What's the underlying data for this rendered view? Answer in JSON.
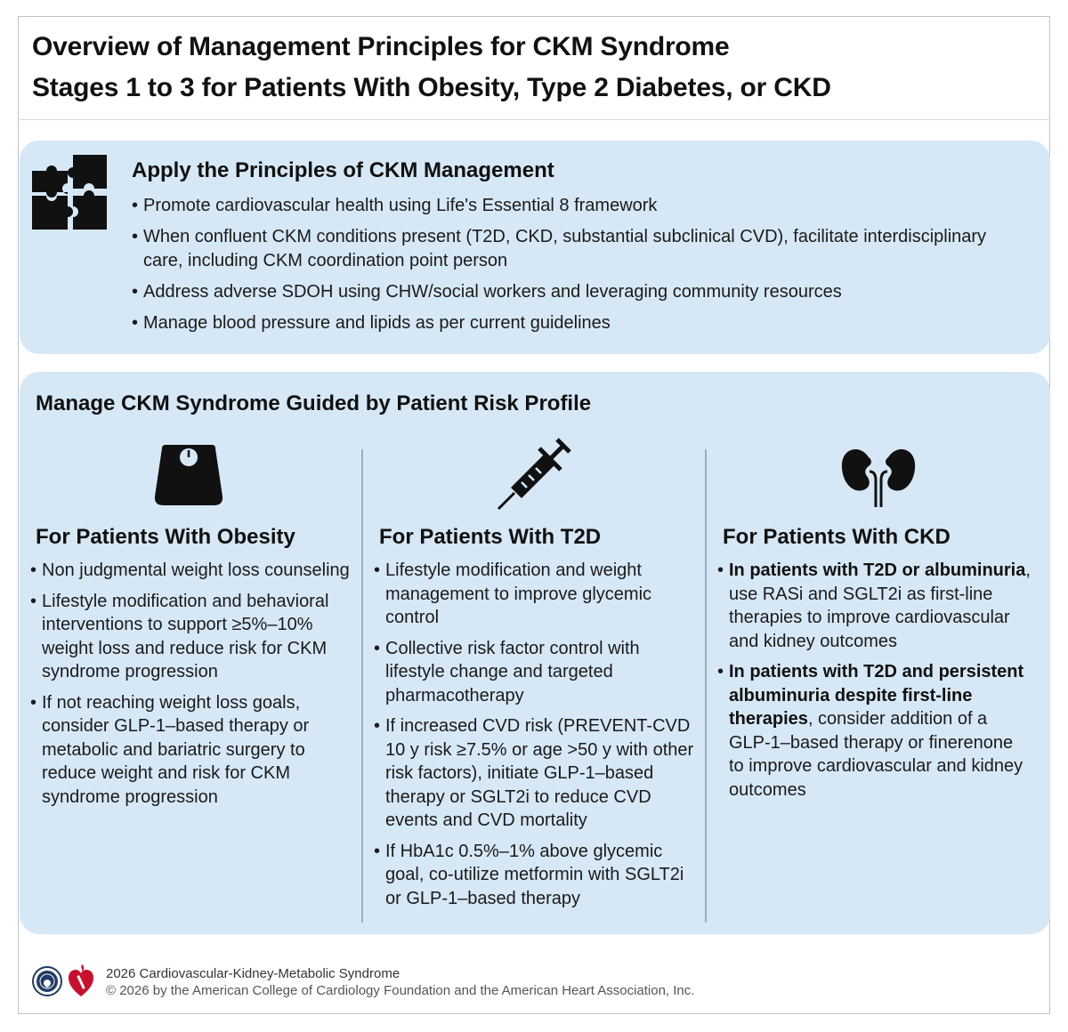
{
  "header": {
    "title_line1": "Overview of Management Principles for CKM Syndrome",
    "title_line2": "Stages 1 to 3 for Patients With Obesity, Type 2 Diabetes, or CKD"
  },
  "principles": {
    "icon": "puzzle-icon",
    "heading": "Apply the Principles of CKM Management",
    "bullets": [
      "Promote cardiovascular health using Life's Essential 8 framework",
      "When confluent CKM conditions present (T2D, CKD, substantial subclinical CVD), facilitate interdisciplinary care, including CKM coordination point person",
      "Address adverse SDOH using CHW/social workers and leveraging community resources",
      "Manage blood pressure and lipids as per current guidelines"
    ]
  },
  "risk_profile": {
    "heading": "Manage CKM Syndrome Guided by Patient Risk Profile",
    "columns": [
      {
        "icon": "weight-scale-icon",
        "heading": "For Patients With Obesity",
        "bullets": [
          {
            "bold": "",
            "text": "Non judgmental weight loss counseling"
          },
          {
            "bold": "",
            "text": "Lifestyle modification and behavioral interventions to support ≥5%–10% weight loss and reduce risk for CKM syndrome progression"
          },
          {
            "bold": "",
            "text": "If not reaching weight loss goals, consider GLP-1–based therapy or metabolic and bariatric surgery to reduce weight and risk for CKM syndrome progression"
          }
        ]
      },
      {
        "icon": "syringe-icon",
        "heading": "For Patients With T2D",
        "bullets": [
          {
            "bold": "",
            "text": "Lifestyle modification and weight management to improve glycemic control"
          },
          {
            "bold": "",
            "text": "Collective risk factor control with lifestyle change and targeted pharmacotherapy"
          },
          {
            "bold": "",
            "text": "If increased CVD risk (PREVENT-CVD 10 y risk ≥7.5% or age >50 y with other risk factors), initiate GLP-1–based therapy or SGLT2i to reduce CVD events and CVD mortality"
          },
          {
            "bold": "",
            "text": "If HbA1c 0.5%–1% above glycemic goal, co-utilize metformin with SGLT2i or GLP-1–based therapy"
          }
        ]
      },
      {
        "icon": "kidneys-icon",
        "heading": "For Patients With CKD",
        "bullets": [
          {
            "bold": "In patients with T2D or albuminuria",
            "text": ", use RASi and SGLT2i as first-line therapies to improve cardiovascular and kidney outcomes"
          },
          {
            "bold": "In patients with T2D and persistent albuminuria despite first-line therapies",
            "text": ", consider addition of a GLP-1–based therapy or finerenone to improve cardiovascular and kidney outcomes"
          }
        ]
      }
    ]
  },
  "footer": {
    "line1": "2026 Cardiovascular-Kidney-Metabolic Syndrome",
    "line2": "© 2026 by the American College of Cardiology Foundation and the American Heart Association, Inc.",
    "logos": [
      "acc-seal-logo",
      "aha-heart-torch-logo"
    ]
  },
  "colors": {
    "panel": "#d6e8f6",
    "divider": "#9aaec2",
    "icon": "#111111",
    "aha_red": "#c8102e",
    "acc_navy": "#1f3b66"
  }
}
